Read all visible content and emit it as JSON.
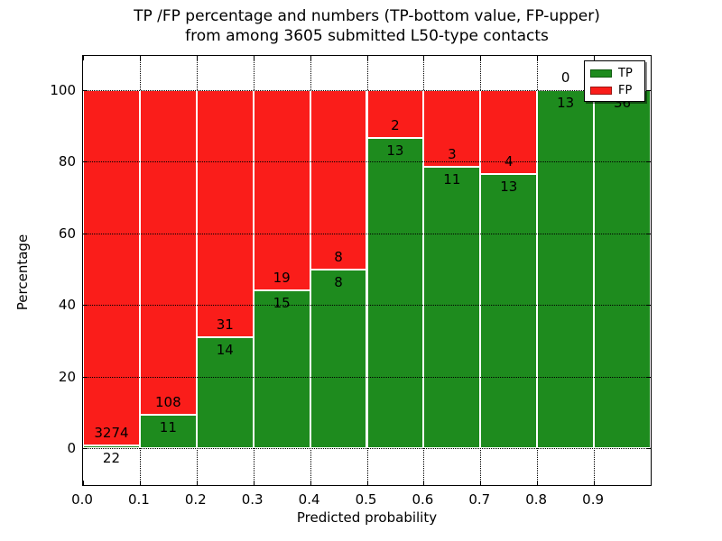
{
  "title": {
    "line1": "TP /FP percentage and numbers (TP-bottom value, FP-upper)",
    "line2": "from among 3605 submitted L50-type contacts"
  },
  "axes": {
    "xlabel": "Predicted probability",
    "ylabel": "Percentage",
    "xtick_labels": [
      "0.0",
      "0.1",
      "0.2",
      "0.3",
      "0.4",
      "0.5",
      "0.6",
      "0.7",
      "0.8",
      "0.9"
    ],
    "ytick_labels": [
      "0",
      "20",
      "40",
      "60",
      "80",
      "100"
    ]
  },
  "legend": {
    "items": [
      {
        "label": "TP",
        "color": "#1e8b1e",
        "edge": "#0f5a0f"
      },
      {
        "label": "FP",
        "color": "#fa1d1a",
        "edge": "#9b1410"
      }
    ],
    "position": "upper right"
  },
  "colors": {
    "tp_fill": "#1e8b1e",
    "fp_fill": "#fa1d1a",
    "grid": "#000000",
    "background": "#ffffff"
  },
  "chart_data": {
    "type": "bar",
    "stacked": true,
    "normalized": "percent",
    "title": "TP /FP percentage and numbers (TP-bottom value, FP-upper) from among 3605 submitted L50-type contacts",
    "xlabel": "Predicted probability",
    "ylabel": "Percentage",
    "bin_width": 0.1,
    "bin_starts": [
      0.0,
      0.1,
      0.2,
      0.3,
      0.4,
      0.5,
      0.6,
      0.7,
      0.8,
      0.9
    ],
    "series": [
      {
        "name": "TP",
        "values": [
          22,
          11,
          14,
          15,
          8,
          13,
          11,
          13,
          13,
          36
        ]
      },
      {
        "name": "FP",
        "values": [
          3274,
          108,
          31,
          19,
          8,
          2,
          3,
          4,
          0,
          0
        ]
      }
    ],
    "tp_percent": [
      0.67,
      9.24,
      31.11,
      44.12,
      50.0,
      86.67,
      78.57,
      76.47,
      100.0,
      100.0
    ],
    "fp_label_shown": [
      true,
      true,
      true,
      true,
      true,
      true,
      true,
      true,
      true,
      false
    ],
    "total_contacts": 3605,
    "xticks": [
      0.0,
      0.1,
      0.2,
      0.3,
      0.4,
      0.5,
      0.6,
      0.7,
      0.8,
      0.9
    ],
    "yticks": [
      0,
      20,
      40,
      60,
      80,
      100
    ],
    "xlim": [
      0.0,
      1.0
    ],
    "ylim": [
      -10,
      110
    ],
    "grid": true,
    "legend_position": "upper right"
  }
}
